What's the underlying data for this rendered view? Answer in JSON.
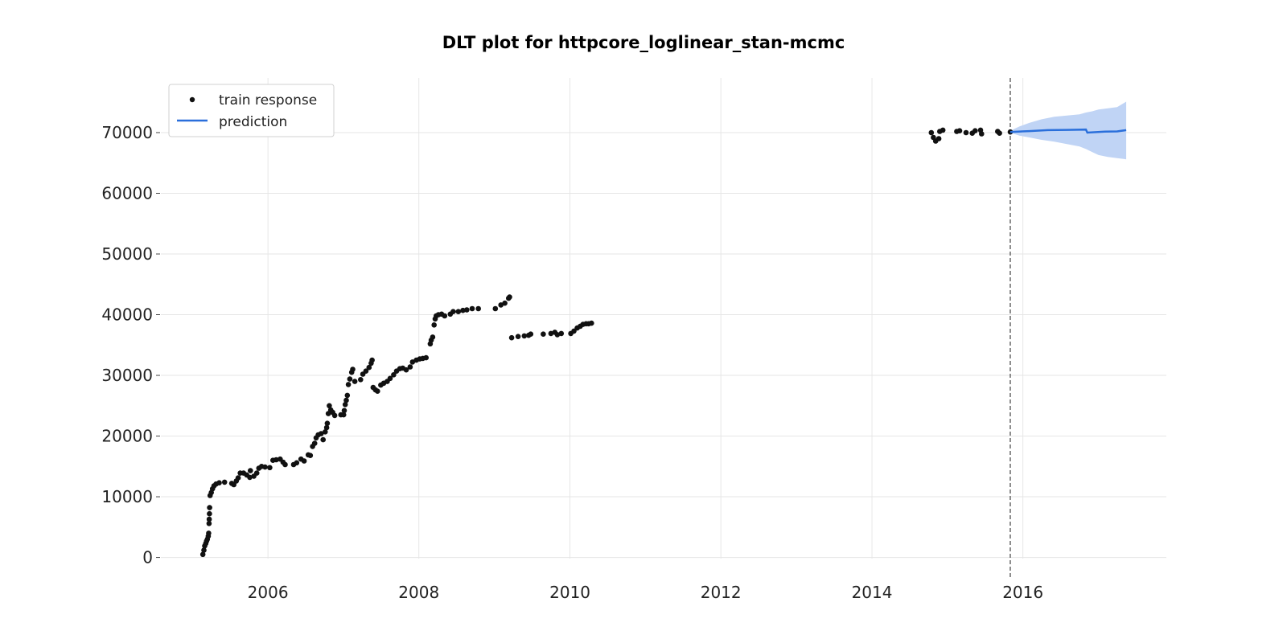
{
  "chart_data": {
    "type": "scatter",
    "title": "DLT plot for httpcore_loglinear_stan-mcmc",
    "xlabel": "",
    "ylabel": "",
    "x_axis_type": "date",
    "xlim": [
      "2004-08-01",
      "2017-11-25"
    ],
    "ylim": [
      -3500,
      79000
    ],
    "x_ticks": [
      "2006",
      "2008",
      "2010",
      "2012",
      "2014",
      "2016"
    ],
    "y_ticks": [
      0,
      10000,
      20000,
      30000,
      40000,
      50000,
      60000,
      70000
    ],
    "grid": true,
    "legend": {
      "position": "top-left",
      "entries": [
        "train response",
        "prediction"
      ]
    },
    "cutoff_date": "2015-11-01",
    "colors": {
      "train": "#111111",
      "prediction": "#2a6fdb",
      "band": "#c0d4f5",
      "cutoff": "#666666",
      "grid": "#e6e6e6"
    },
    "series": [
      {
        "name": "train response",
        "kind": "scatter",
        "points": [
          [
            "2005-02-20",
            500
          ],
          [
            "2005-02-25",
            1200
          ],
          [
            "2005-03-01",
            1900
          ],
          [
            "2005-03-06",
            2300
          ],
          [
            "2005-03-10",
            2700
          ],
          [
            "2005-03-14",
            3000
          ],
          [
            "2005-03-18",
            3500
          ],
          [
            "2005-03-20",
            4000
          ],
          [
            "2005-03-22",
            5600
          ],
          [
            "2005-03-23",
            6300
          ],
          [
            "2005-03-24",
            7200
          ],
          [
            "2005-03-25",
            8200
          ],
          [
            "2005-03-27",
            10200
          ],
          [
            "2005-04-02",
            10700
          ],
          [
            "2005-04-08",
            11300
          ],
          [
            "2005-04-15",
            11800
          ],
          [
            "2005-04-25",
            12100
          ],
          [
            "2005-05-10",
            12300
          ],
          [
            "2005-06-05",
            12400
          ],
          [
            "2005-07-10",
            12200
          ],
          [
            "2005-07-20",
            12000
          ],
          [
            "2005-08-01",
            12600
          ],
          [
            "2005-08-10",
            13100
          ],
          [
            "2005-08-20",
            13900
          ],
          [
            "2005-09-05",
            13900
          ],
          [
            "2005-09-20",
            13600
          ],
          [
            "2005-10-05",
            13200
          ],
          [
            "2005-10-08",
            14300
          ],
          [
            "2005-10-25",
            13400
          ],
          [
            "2005-11-08",
            13900
          ],
          [
            "2005-11-18",
            14700
          ],
          [
            "2005-12-01",
            15000
          ],
          [
            "2005-12-18",
            14900
          ],
          [
            "2006-01-10",
            14800
          ],
          [
            "2006-01-25",
            16000
          ],
          [
            "2006-02-10",
            16100
          ],
          [
            "2006-03-01",
            16200
          ],
          [
            "2006-03-15",
            15700
          ],
          [
            "2006-03-25",
            15300
          ],
          [
            "2006-05-05",
            15300
          ],
          [
            "2006-05-20",
            15600
          ],
          [
            "2006-06-10",
            16200
          ],
          [
            "2006-06-25",
            15900
          ],
          [
            "2006-07-15",
            16900
          ],
          [
            "2006-07-25",
            16800
          ],
          [
            "2006-08-05",
            18300
          ],
          [
            "2006-08-15",
            18800
          ],
          [
            "2006-08-22",
            19700
          ],
          [
            "2006-09-01",
            20200
          ],
          [
            "2006-09-15",
            20400
          ],
          [
            "2006-09-25",
            19400
          ],
          [
            "2006-10-05",
            20700
          ],
          [
            "2006-10-12",
            21400
          ],
          [
            "2006-10-15",
            22100
          ],
          [
            "2006-10-20",
            23700
          ],
          [
            "2006-10-25",
            25000
          ],
          [
            "2006-11-01",
            24300
          ],
          [
            "2006-11-10",
            23900
          ],
          [
            "2006-11-20",
            23400
          ],
          [
            "2006-12-20",
            23500
          ],
          [
            "2007-01-02",
            23500
          ],
          [
            "2007-01-05",
            24200
          ],
          [
            "2007-01-10",
            25200
          ],
          [
            "2007-01-15",
            25900
          ],
          [
            "2007-01-20",
            26700
          ],
          [
            "2007-01-25",
            28500
          ],
          [
            "2007-02-01",
            29400
          ],
          [
            "2007-02-10",
            30500
          ],
          [
            "2007-02-15",
            31000
          ],
          [
            "2007-02-25",
            29000
          ],
          [
            "2007-03-25",
            29300
          ],
          [
            "2007-04-05",
            30200
          ],
          [
            "2007-04-20",
            30700
          ],
          [
            "2007-05-05",
            31300
          ],
          [
            "2007-05-15",
            32000
          ],
          [
            "2007-05-20",
            32500
          ],
          [
            "2007-05-25",
            28000
          ],
          [
            "2007-06-05",
            27600
          ],
          [
            "2007-06-15",
            27400
          ],
          [
            "2007-07-01",
            28400
          ],
          [
            "2007-07-15",
            28700
          ],
          [
            "2007-08-01",
            29000
          ],
          [
            "2007-08-15",
            29500
          ],
          [
            "2007-09-01",
            30100
          ],
          [
            "2007-09-15",
            30700
          ],
          [
            "2007-10-01",
            31100
          ],
          [
            "2007-10-15",
            31200
          ],
          [
            "2007-11-01",
            30900
          ],
          [
            "2007-11-20",
            31400
          ],
          [
            "2007-12-01",
            32200
          ],
          [
            "2007-12-20",
            32500
          ],
          [
            "2008-01-05",
            32700
          ],
          [
            "2008-01-20",
            32800
          ],
          [
            "2008-02-05",
            32900
          ],
          [
            "2008-02-25",
            35200
          ],
          [
            "2008-03-01",
            35800
          ],
          [
            "2008-03-08",
            36300
          ],
          [
            "2008-03-15",
            38300
          ],
          [
            "2008-03-20",
            39300
          ],
          [
            "2008-03-25",
            39800
          ],
          [
            "2008-04-05",
            40000
          ],
          [
            "2008-04-20",
            40100
          ],
          [
            "2008-05-05",
            39800
          ],
          [
            "2008-06-01",
            40100
          ],
          [
            "2008-06-15",
            40500
          ],
          [
            "2008-07-10",
            40500
          ],
          [
            "2008-08-01",
            40700
          ],
          [
            "2008-08-20",
            40800
          ],
          [
            "2008-09-15",
            41000
          ],
          [
            "2008-10-15",
            41000
          ],
          [
            "2009-01-05",
            41000
          ],
          [
            "2009-02-01",
            41600
          ],
          [
            "2009-02-20",
            41900
          ],
          [
            "2009-03-10",
            42700
          ],
          [
            "2009-03-15",
            42900
          ],
          [
            "2009-03-25",
            36200
          ],
          [
            "2009-04-25",
            36400
          ],
          [
            "2009-05-25",
            36500
          ],
          [
            "2009-06-15",
            36600
          ],
          [
            "2009-06-25",
            36800
          ],
          [
            "2009-08-25",
            36800
          ],
          [
            "2009-10-01",
            36900
          ],
          [
            "2009-10-20",
            37100
          ],
          [
            "2009-11-01",
            36700
          ],
          [
            "2009-11-20",
            36900
          ],
          [
            "2010-01-05",
            36900
          ],
          [
            "2010-01-20",
            37300
          ],
          [
            "2010-02-05",
            37800
          ],
          [
            "2010-02-20",
            38100
          ],
          [
            "2010-03-05",
            38400
          ],
          [
            "2010-03-20",
            38500
          ],
          [
            "2010-04-01",
            38500
          ],
          [
            "2010-04-15",
            38600
          ],
          [
            "2014-10-15",
            70000
          ],
          [
            "2014-10-25",
            69200
          ],
          [
            "2014-11-05",
            68600
          ],
          [
            "2014-11-20",
            69000
          ],
          [
            "2014-11-25",
            70200
          ],
          [
            "2014-12-10",
            70400
          ],
          [
            "2015-02-15",
            70200
          ],
          [
            "2015-03-01",
            70300
          ],
          [
            "2015-04-01",
            70000
          ],
          [
            "2015-05-01",
            69900
          ],
          [
            "2015-05-15",
            70300
          ],
          [
            "2015-06-10",
            70400
          ],
          [
            "2015-06-15",
            69800
          ],
          [
            "2015-09-01",
            70200
          ],
          [
            "2015-09-10",
            69900
          ],
          [
            "2015-11-01",
            70100
          ]
        ]
      },
      {
        "name": "prediction",
        "kind": "line",
        "points": [
          [
            "2015-11-01",
            70100
          ],
          [
            "2016-02-01",
            70250
          ],
          [
            "2016-05-01",
            70400
          ],
          [
            "2016-08-01",
            70450
          ],
          [
            "2016-11-01",
            70500
          ],
          [
            "2016-11-08",
            70000
          ],
          [
            "2017-02-01",
            70150
          ],
          [
            "2017-04-01",
            70200
          ],
          [
            "2017-05-15",
            70400
          ]
        ],
        "band": [
          [
            "2015-11-01",
            70000,
            70300
          ],
          [
            "2015-12-15",
            69500,
            71000
          ],
          [
            "2016-02-01",
            69200,
            71600
          ],
          [
            "2016-04-01",
            68800,
            72200
          ],
          [
            "2016-06-01",
            68500,
            72600
          ],
          [
            "2016-08-01",
            68100,
            72800
          ],
          [
            "2016-10-01",
            67700,
            73000
          ],
          [
            "2016-11-01",
            67300,
            73300
          ],
          [
            "2016-12-01",
            66800,
            73500
          ],
          [
            "2017-01-01",
            66300,
            73800
          ],
          [
            "2017-02-15",
            66000,
            74000
          ],
          [
            "2017-04-01",
            65800,
            74200
          ],
          [
            "2017-05-15",
            65600,
            75100
          ]
        ]
      }
    ]
  }
}
